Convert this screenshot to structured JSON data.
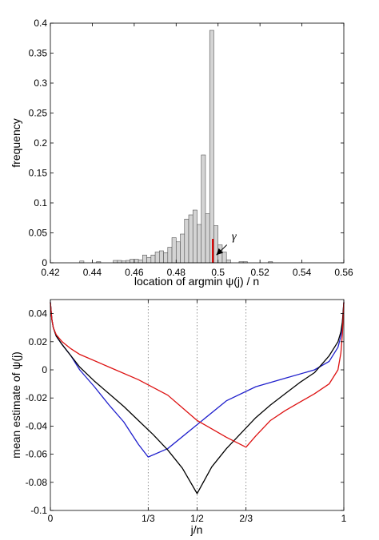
{
  "chart_data": [
    {
      "type": "bar",
      "xlabel": "location of argmin ψ(j) / n",
      "ylabel": "frequency",
      "xlim": [
        0.42,
        0.56
      ],
      "ylim": [
        0,
        0.4
      ],
      "xticks": [
        "0.42",
        "0.44",
        "0.46",
        "0.48",
        "0.5",
        "0.52",
        "0.54",
        "0.56"
      ],
      "yticks": [
        "0",
        "0.05",
        "0.1",
        "0.15",
        "0.2",
        "0.25",
        "0.3",
        "0.35",
        "0.4"
      ],
      "grid": false,
      "bar_color": "#d4d4d4",
      "bar_width": 0.002,
      "bins": [
        {
          "x": 0.435,
          "y": 0.003
        },
        {
          "x": 0.443,
          "y": 0.002
        },
        {
          "x": 0.451,
          "y": 0.004
        },
        {
          "x": 0.453,
          "y": 0.004
        },
        {
          "x": 0.455,
          "y": 0.003
        },
        {
          "x": 0.457,
          "y": 0.004
        },
        {
          "x": 0.459,
          "y": 0.006
        },
        {
          "x": 0.461,
          "y": 0.006
        },
        {
          "x": 0.463,
          "y": 0.005
        },
        {
          "x": 0.465,
          "y": 0.013
        },
        {
          "x": 0.467,
          "y": 0.009
        },
        {
          "x": 0.469,
          "y": 0.013
        },
        {
          "x": 0.471,
          "y": 0.018
        },
        {
          "x": 0.473,
          "y": 0.02
        },
        {
          "x": 0.475,
          "y": 0.017
        },
        {
          "x": 0.477,
          "y": 0.026
        },
        {
          "x": 0.479,
          "y": 0.042
        },
        {
          "x": 0.481,
          "y": 0.035
        },
        {
          "x": 0.483,
          "y": 0.048
        },
        {
          "x": 0.485,
          "y": 0.073
        },
        {
          "x": 0.487,
          "y": 0.08
        },
        {
          "x": 0.489,
          "y": 0.088
        },
        {
          "x": 0.491,
          "y": 0.064
        },
        {
          "x": 0.493,
          "y": 0.18
        },
        {
          "x": 0.495,
          "y": 0.082
        },
        {
          "x": 0.497,
          "y": 0.388
        },
        {
          "x": 0.499,
          "y": 0.062
        },
        {
          "x": 0.501,
          "y": 0.03
        },
        {
          "x": 0.503,
          "y": 0.018
        },
        {
          "x": 0.505,
          "y": 0.005
        },
        {
          "x": 0.511,
          "y": 0.002
        },
        {
          "x": 0.513,
          "y": 0.002
        },
        {
          "x": 0.525,
          "y": 0.002
        }
      ],
      "marker": {
        "x": 0.4975,
        "y": 0.04,
        "color": "#dd0000"
      },
      "annotation": {
        "text": "γ",
        "arrow_to_x": 0.4992,
        "arrow_to_y": 0.013,
        "text_x": 0.5065,
        "text_y": 0.038
      }
    },
    {
      "type": "line",
      "xlabel": "j/n",
      "ylabel": "mean estimate of ψ(j)",
      "xlim": [
        0,
        1
      ],
      "ylim": [
        -0.1,
        0.05
      ],
      "xticks": [
        "0",
        "1/3",
        "1/2",
        "2/3",
        "1"
      ],
      "yticks": [
        "-0.1",
        "-0.08",
        "-0.06",
        "-0.04",
        "-0.02",
        "0",
        "0.02",
        "0.04"
      ],
      "vlines": [
        0.3333,
        0.5,
        0.6667
      ],
      "grid": false,
      "series": [
        {
          "color": "#1f1fcc",
          "x": [
            0,
            0.005,
            0.01,
            0.02,
            0.04,
            0.07,
            0.1,
            0.15,
            0.2,
            0.25,
            0.3,
            0.3333,
            0.4,
            0.5,
            0.6,
            0.7,
            0.8,
            0.9,
            0.95,
            0.98,
            0.99,
            0.995,
            1
          ],
          "y": [
            0.048,
            0.036,
            0.03,
            0.024,
            0.018,
            0.01,
            0.0,
            -0.012,
            -0.025,
            -0.037,
            -0.053,
            -0.062,
            -0.056,
            -0.039,
            -0.022,
            -0.012,
            -0.006,
            0.0,
            0.006,
            0.016,
            0.024,
            0.032,
            0.048
          ]
        },
        {
          "color": "#000000",
          "x": [
            0,
            0.005,
            0.01,
            0.02,
            0.04,
            0.07,
            0.1,
            0.15,
            0.2,
            0.25,
            0.3,
            0.35,
            0.4,
            0.45,
            0.5,
            0.55,
            0.6,
            0.65,
            0.7,
            0.75,
            0.8,
            0.85,
            0.9,
            0.95,
            0.98,
            0.99,
            0.995,
            1
          ],
          "y": [
            0.048,
            0.036,
            0.03,
            0.024,
            0.018,
            0.01,
            0.002,
            -0.008,
            -0.017,
            -0.026,
            -0.036,
            -0.046,
            -0.057,
            -0.07,
            -0.088,
            -0.069,
            -0.056,
            -0.045,
            -0.034,
            -0.025,
            -0.017,
            -0.009,
            -0.002,
            0.01,
            0.02,
            0.027,
            0.034,
            0.048
          ]
        },
        {
          "color": "#dd1111",
          "x": [
            0,
            0.005,
            0.01,
            0.02,
            0.04,
            0.07,
            0.1,
            0.2,
            0.3,
            0.4,
            0.5,
            0.6,
            0.6667,
            0.7,
            0.75,
            0.8,
            0.85,
            0.9,
            0.95,
            0.98,
            0.99,
            0.995,
            1
          ],
          "y": [
            0.048,
            0.036,
            0.03,
            0.025,
            0.02,
            0.015,
            0.011,
            0.002,
            -0.007,
            -0.018,
            -0.036,
            -0.048,
            -0.055,
            -0.047,
            -0.036,
            -0.029,
            -0.023,
            -0.017,
            -0.01,
            0.0,
            0.012,
            0.025,
            0.048
          ]
        }
      ]
    }
  ]
}
